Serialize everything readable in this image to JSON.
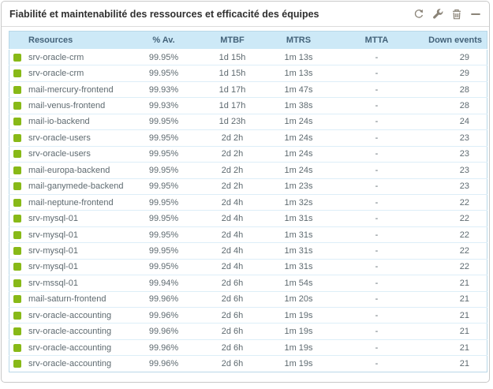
{
  "widget": {
    "title": "Fiabilité et maintenabilité des ressources et efficacité des équipes",
    "toolbar": {
      "refresh": "refresh",
      "configure": "configure",
      "delete": "delete",
      "collapse": "collapse"
    }
  },
  "table": {
    "columns": [
      "Resources",
      "% Av.",
      "MTBF",
      "MTRS",
      "MTTA",
      "Down events"
    ],
    "rows": [
      {
        "status": "ok",
        "resource": "srv-oracle-crm",
        "availability": "99.95%",
        "mtbf": "1d 15h",
        "mtrs": "1m 13s",
        "mtta": "-",
        "down_events": "29"
      },
      {
        "status": "ok",
        "resource": "srv-oracle-crm",
        "availability": "99.95%",
        "mtbf": "1d 15h",
        "mtrs": "1m 13s",
        "mtta": "-",
        "down_events": "29"
      },
      {
        "status": "ok",
        "resource": "mail-mercury-frontend",
        "availability": "99.93%",
        "mtbf": "1d 17h",
        "mtrs": "1m 47s",
        "mtta": "-",
        "down_events": "28"
      },
      {
        "status": "ok",
        "resource": "mail-venus-frontend",
        "availability": "99.93%",
        "mtbf": "1d 17h",
        "mtrs": "1m 38s",
        "mtta": "-",
        "down_events": "28"
      },
      {
        "status": "ok",
        "resource": "mail-io-backend",
        "availability": "99.95%",
        "mtbf": "1d 23h",
        "mtrs": "1m 24s",
        "mtta": "-",
        "down_events": "24"
      },
      {
        "status": "ok",
        "resource": "srv-oracle-users",
        "availability": "99.95%",
        "mtbf": "2d 2h",
        "mtrs": "1m 24s",
        "mtta": "-",
        "down_events": "23"
      },
      {
        "status": "ok",
        "resource": "srv-oracle-users",
        "availability": "99.95%",
        "mtbf": "2d 2h",
        "mtrs": "1m 24s",
        "mtta": "-",
        "down_events": "23"
      },
      {
        "status": "ok",
        "resource": "mail-europa-backend",
        "availability": "99.95%",
        "mtbf": "2d 2h",
        "mtrs": "1m 24s",
        "mtta": "-",
        "down_events": "23"
      },
      {
        "status": "ok",
        "resource": "mail-ganymede-backend",
        "availability": "99.95%",
        "mtbf": "2d 2h",
        "mtrs": "1m 23s",
        "mtta": "-",
        "down_events": "23"
      },
      {
        "status": "ok",
        "resource": "mail-neptune-frontend",
        "availability": "99.95%",
        "mtbf": "2d 4h",
        "mtrs": "1m 32s",
        "mtta": "-",
        "down_events": "22"
      },
      {
        "status": "ok",
        "resource": "srv-mysql-01",
        "availability": "99.95%",
        "mtbf": "2d 4h",
        "mtrs": "1m 31s",
        "mtta": "-",
        "down_events": "22"
      },
      {
        "status": "ok",
        "resource": "srv-mysql-01",
        "availability": "99.95%",
        "mtbf": "2d 4h",
        "mtrs": "1m 31s",
        "mtta": "-",
        "down_events": "22"
      },
      {
        "status": "ok",
        "resource": "srv-mysql-01",
        "availability": "99.95%",
        "mtbf": "2d 4h",
        "mtrs": "1m 31s",
        "mtta": "-",
        "down_events": "22"
      },
      {
        "status": "ok",
        "resource": "srv-mysql-01",
        "availability": "99.95%",
        "mtbf": "2d 4h",
        "mtrs": "1m 31s",
        "mtta": "-",
        "down_events": "22"
      },
      {
        "status": "ok",
        "resource": "srv-mssql-01",
        "availability": "99.94%",
        "mtbf": "2d 6h",
        "mtrs": "1m 54s",
        "mtta": "-",
        "down_events": "21"
      },
      {
        "status": "ok",
        "resource": "mail-saturn-frontend",
        "availability": "99.96%",
        "mtbf": "2d 6h",
        "mtrs": "1m 20s",
        "mtta": "-",
        "down_events": "21"
      },
      {
        "status": "ok",
        "resource": "srv-oracle-accounting",
        "availability": "99.96%",
        "mtbf": "2d 6h",
        "mtrs": "1m 19s",
        "mtta": "-",
        "down_events": "21"
      },
      {
        "status": "ok",
        "resource": "srv-oracle-accounting",
        "availability": "99.96%",
        "mtbf": "2d 6h",
        "mtrs": "1m 19s",
        "mtta": "-",
        "down_events": "21"
      },
      {
        "status": "ok",
        "resource": "srv-oracle-accounting",
        "availability": "99.96%",
        "mtbf": "2d 6h",
        "mtrs": "1m 19s",
        "mtta": "-",
        "down_events": "21"
      },
      {
        "status": "ok",
        "resource": "srv-oracle-accounting",
        "availability": "99.96%",
        "mtbf": "2d 6h",
        "mtrs": "1m 19s",
        "mtta": "-",
        "down_events": "21"
      }
    ]
  },
  "colors": {
    "status_ok": "#88b917",
    "table_header_bg": "#cde9f7",
    "table_border": "#b9d8e8",
    "row_divider": "#ddeef8",
    "header_text": "#44637a",
    "body_text": "#5e6a70",
    "icon_gray": "#8b8478"
  }
}
